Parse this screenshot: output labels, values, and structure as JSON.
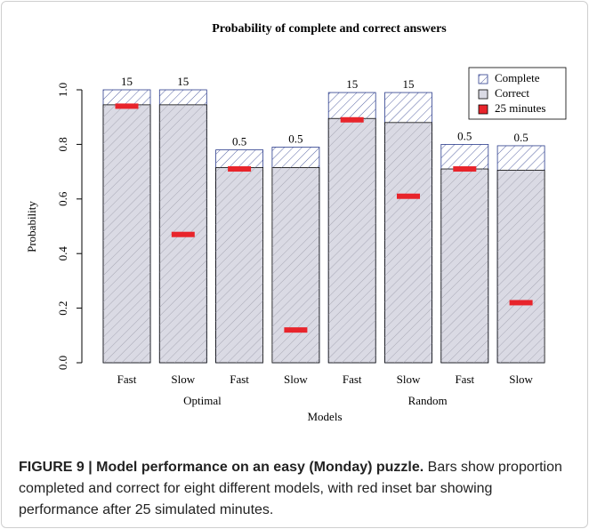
{
  "chart_data": {
    "type": "bar",
    "title": "Probability of complete and correct answers",
    "y_label": "Probability",
    "x_label": "Models",
    "categories": [
      "Fast",
      "Slow",
      "Fast",
      "Slow",
      "Fast",
      "Slow",
      "Fast",
      "Slow"
    ],
    "groups": [
      "Optimal",
      "Random"
    ],
    "bar_labels": [
      15,
      15,
      0.5,
      0.5,
      15,
      15,
      0.5,
      0.5
    ],
    "series": [
      {
        "name": "Complete",
        "color": "#2b3c8c",
        "values": [
          1.0,
          1.0,
          0.78,
          0.79,
          0.99,
          0.99,
          0.8,
          0.795
        ]
      },
      {
        "name": "Correct",
        "color": "#dadae4",
        "values": [
          0.945,
          0.945,
          0.715,
          0.715,
          0.895,
          0.88,
          0.71,
          0.705
        ]
      },
      {
        "name": "25 minutes",
        "color": "#e8242b",
        "values": [
          0.94,
          0.47,
          0.71,
          0.12,
          0.89,
          0.61,
          0.71,
          0.22
        ]
      }
    ],
    "ylim": [
      0,
      1
    ],
    "yticks": [
      {
        "value": 0,
        "label": "0.0"
      },
      0.2,
      0.4,
      0.6,
      0.8,
      {
        "value": 1,
        "label": "1.0"
      }
    ],
    "legend": "top-right"
  },
  "caption": {
    "label": "FIGURE 9 | Model performance on an easy (Monday) puzzle.",
    "text": "Bars show proportion completed and correct for eight different models, with red inset bar showing performance after 25 simulated minutes."
  }
}
